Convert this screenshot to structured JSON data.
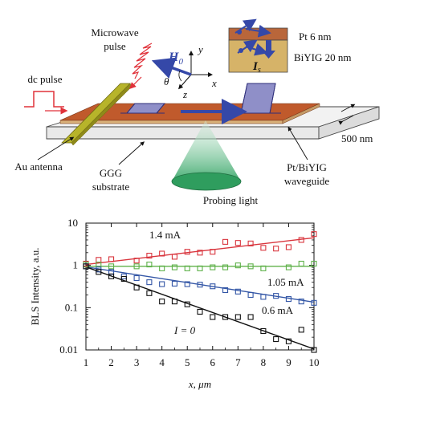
{
  "schematic": {
    "microwave_pulse_line1": "Microwave",
    "microwave_pulse_line2": "pulse",
    "dc_pulse": "dc pulse",
    "field_symbol": "H",
    "field_subscript": "0",
    "axis_y": "y",
    "axis_x": "x",
    "axis_z": "z",
    "angle": "θ",
    "pt_layer": "Pt 6 nm",
    "biyig_layer": "BiYIG 20 nm",
    "current_symbol": "I",
    "current_subscript": "s",
    "thickness": "500 nm",
    "au_antenna": "Au antenna",
    "ggg_line1": "GGG",
    "ggg_line2": "substrate",
    "waveguide_line1": "Pt/BiYIG",
    "waveguide_line2": "waveguide",
    "probing_light": "Probing light",
    "colors": {
      "film_top": "#c05a2c",
      "antenna": "#b7b42a",
      "pulse_fill": "#8f8fc8",
      "arrow_blue": "#3548a8",
      "pt_box": "#b9663a",
      "biyig_box": "#d6b368",
      "light_cone": "#3aa86a",
      "microwave_red": "#e0323a"
    }
  },
  "chart_data": {
    "type": "scatter",
    "xlabel": "x, μm",
    "ylabel": "BLS Intensity, a.u.",
    "xlim": [
      1,
      10
    ],
    "ylim": [
      0.01,
      10
    ],
    "yscale": "log",
    "x_ticks": [
      "1",
      "2",
      "3",
      "4",
      "5",
      "6",
      "7",
      "8",
      "9",
      "10"
    ],
    "y_ticks": [
      "0.01",
      "0.1",
      "1",
      "10"
    ],
    "grid": false,
    "series": [
      {
        "name": "1.4 mA",
        "color": "#d9363e",
        "x": [
          1,
          1.5,
          2,
          3,
          3.5,
          4,
          4.5,
          5,
          5.5,
          6,
          6.5,
          7,
          7.5,
          8,
          8.5,
          9,
          9.5,
          10
        ],
        "y": [
          1.1,
          1.35,
          1.4,
          1.3,
          1.7,
          1.9,
          1.6,
          2.1,
          2.0,
          2.1,
          3.6,
          3.4,
          3.3,
          2.6,
          2.5,
          2.7,
          4.0,
          5.5
        ],
        "fit": [
          [
            1,
            1.05
          ],
          [
            10,
            4.5
          ]
        ]
      },
      {
        "name": "1.05 mA",
        "color": "#5fb14a",
        "x": [
          1,
          1.5,
          2,
          3,
          3.5,
          4,
          4.5,
          5,
          5.5,
          6,
          6.5,
          7,
          7.5,
          8,
          9,
          9.5,
          10
        ],
        "y": [
          1.05,
          1.05,
          0.95,
          0.95,
          1.05,
          0.85,
          0.9,
          0.85,
          0.85,
          0.9,
          0.9,
          1.0,
          0.95,
          0.85,
          0.9,
          1.1,
          1.1
        ],
        "fit": [
          [
            1,
            0.95
          ],
          [
            10,
            0.95
          ]
        ]
      },
      {
        "name": "0.6 mA",
        "color": "#3356a6",
        "x": [
          1,
          1.5,
          2,
          2.5,
          3,
          3.5,
          4,
          4.5,
          5,
          5.5,
          6,
          6.5,
          7,
          7.5,
          8,
          8.5,
          9,
          9.5,
          10
        ],
        "y": [
          0.95,
          0.8,
          0.7,
          0.55,
          0.5,
          0.4,
          0.36,
          0.37,
          0.36,
          0.35,
          0.32,
          0.26,
          0.24,
          0.2,
          0.18,
          0.19,
          0.16,
          0.14,
          0.13
        ],
        "fit": [
          [
            1,
            0.92
          ],
          [
            10,
            0.135
          ]
        ]
      },
      {
        "name": "I = 0",
        "color": "#111111",
        "x": [
          1,
          1.5,
          2,
          2.5,
          3,
          3.5,
          4,
          4.5,
          5,
          5.5,
          6,
          6.5,
          7,
          7.5,
          8,
          8.5,
          9,
          9.5,
          10
        ],
        "y": [
          0.95,
          0.7,
          0.55,
          0.48,
          0.3,
          0.22,
          0.14,
          0.14,
          0.12,
          0.08,
          0.06,
          0.06,
          0.06,
          0.06,
          0.028,
          0.018,
          0.016,
          0.03,
          0.01
        ],
        "fit": [
          [
            1,
            0.92
          ],
          [
            10,
            0.0105
          ]
        ]
      }
    ]
  }
}
